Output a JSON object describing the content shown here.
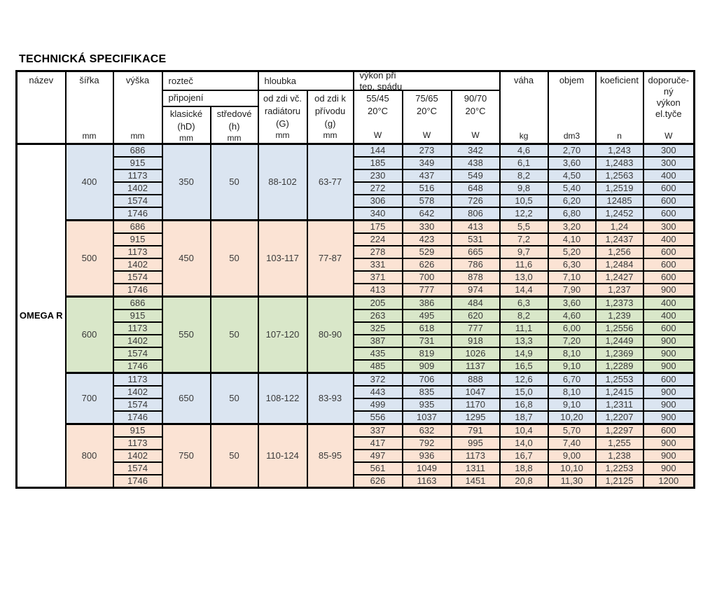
{
  "page_title": "TECHNICKÁ SPECIFIKACE",
  "product_name": "OMEGA R",
  "colors": {
    "group_blue": "#dbe5f1",
    "group_peach": "#fbe3d4",
    "group_green": "#d9e7c9",
    "border": "#000000"
  },
  "header": {
    "nazev": "název",
    "sirka": "šířka",
    "vyska": "výška",
    "roztec": "rozteč",
    "pripojeni": "připojení",
    "klasicke": "klasické",
    "klasicke_sub": "(hD)",
    "stredove": "středové",
    "stredove_sub": "(h)",
    "hloubka": "hloubka",
    "depth_g_line1": "od zdi vč.",
    "depth_g_line2": "radiátoru",
    "depth_g_line3": "(G)",
    "depth_g2_line1": "od zdi k",
    "depth_g2_line2": "přívodu",
    "depth_g2_line3": "(g)",
    "vykon_line1": "výkon při",
    "vykon_line2": "tep. spádu",
    "power55": "55/45",
    "power75": "75/65",
    "power90": "90/70",
    "temp": "20°C",
    "vaha": "váha",
    "objem": "objem",
    "koeficient": "koeficient",
    "dopor_line1": "doporuče-",
    "dopor_line2": "ný",
    "dopor_line3": "výkon",
    "dopor_line4": "el.tyče",
    "unit_mm": "mm",
    "unit_w": "W",
    "unit_kg": "kg",
    "unit_dm3": "dm3",
    "unit_n": "n"
  },
  "groups": [
    {
      "sirka": "400",
      "color": "blue",
      "roztec_klasicke": "350",
      "roztec_stredove": "50",
      "hloubka_g": "88-102",
      "hloubka_g2": "63-77",
      "rows": [
        {
          "vyska": "686",
          "w55": "144",
          "w75": "273",
          "w90": "342",
          "vaha": "4,6",
          "objem": "2,70",
          "koef": "1,243",
          "dopor": "300"
        },
        {
          "vyska": "915",
          "w55": "185",
          "w75": "349",
          "w90": "438",
          "vaha": "6,1",
          "objem": "3,60",
          "koef": "1,2483",
          "dopor": "300"
        },
        {
          "vyska": "1173",
          "w55": "230",
          "w75": "437",
          "w90": "549",
          "vaha": "8,2",
          "objem": "4,50",
          "koef": "1,2563",
          "dopor": "400"
        },
        {
          "vyska": "1402",
          "w55": "272",
          "w75": "516",
          "w90": "648",
          "vaha": "9,8",
          "objem": "5,40",
          "koef": "1,2519",
          "dopor": "600"
        },
        {
          "vyska": "1574",
          "w55": "306",
          "w75": "578",
          "w90": "726",
          "vaha": "10,5",
          "objem": "6,20",
          "koef": "12485",
          "dopor": "600"
        },
        {
          "vyska": "1746",
          "w55": "340",
          "w75": "642",
          "w90": "806",
          "vaha": "12,2",
          "objem": "6,80",
          "koef": "1,2452",
          "dopor": "600"
        }
      ]
    },
    {
      "sirka": "500",
      "color": "peach",
      "roztec_klasicke": "450",
      "roztec_stredove": "50",
      "hloubka_g": "103-117",
      "hloubka_g2": "77-87",
      "rows": [
        {
          "vyska": "686",
          "w55": "175",
          "w75": "330",
          "w90": "413",
          "vaha": "5,5",
          "objem": "3,20",
          "koef": "1,24",
          "dopor": "300"
        },
        {
          "vyska": "915",
          "w55": "224",
          "w75": "423",
          "w90": "531",
          "vaha": "7,2",
          "objem": "4,10",
          "koef": "1,2437",
          "dopor": "400"
        },
        {
          "vyska": "1173",
          "w55": "278",
          "w75": "529",
          "w90": "665",
          "vaha": "9,7",
          "objem": "5,20",
          "koef": "1,256",
          "dopor": "600"
        },
        {
          "vyska": "1402",
          "w55": "331",
          "w75": "626",
          "w90": "786",
          "vaha": "11,6",
          "objem": "6,30",
          "koef": "1,2484",
          "dopor": "600"
        },
        {
          "vyska": "1574",
          "w55": "371",
          "w75": "700",
          "w90": "878",
          "vaha": "13,0",
          "objem": "7,10",
          "koef": "1,2427",
          "dopor": "600"
        },
        {
          "vyska": "1746",
          "w55": "413",
          "w75": "777",
          "w90": "974",
          "vaha": "14,4",
          "objem": "7,90",
          "koef": "1,237",
          "dopor": "900"
        }
      ]
    },
    {
      "sirka": "600",
      "color": "green",
      "roztec_klasicke": "550",
      "roztec_stredove": "50",
      "hloubka_g": "107-120",
      "hloubka_g2": "80-90",
      "rows": [
        {
          "vyska": "686",
          "w55": "205",
          "w75": "386",
          "w90": "484",
          "vaha": "6,3",
          "objem": "3,60",
          "koef": "1,2373",
          "dopor": "400"
        },
        {
          "vyska": "915",
          "w55": "263",
          "w75": "495",
          "w90": "620",
          "vaha": "8,2",
          "objem": "4,60",
          "koef": "1,239",
          "dopor": "400"
        },
        {
          "vyska": "1173",
          "w55": "325",
          "w75": "618",
          "w90": "777",
          "vaha": "11,1",
          "objem": "6,00",
          "koef": "1,2556",
          "dopor": "600"
        },
        {
          "vyska": "1402",
          "w55": "387",
          "w75": "731",
          "w90": "918",
          "vaha": "13,3",
          "objem": "7,20",
          "koef": "1,2449",
          "dopor": "900"
        },
        {
          "vyska": "1574",
          "w55": "435",
          "w75": "819",
          "w90": "1026",
          "vaha": "14,9",
          "objem": "8,10",
          "koef": "1,2369",
          "dopor": "900"
        },
        {
          "vyska": "1746",
          "w55": "485",
          "w75": "909",
          "w90": "1137",
          "vaha": "16,5",
          "objem": "9,10",
          "koef": "1,2289",
          "dopor": "900"
        }
      ]
    },
    {
      "sirka": "700",
      "color": "blue",
      "roztec_klasicke": "650",
      "roztec_stredove": "50",
      "hloubka_g": "108-122",
      "hloubka_g2": "83-93",
      "rows": [
        {
          "vyska": "1173",
          "w55": "372",
          "w75": "706",
          "w90": "888",
          "vaha": "12,6",
          "objem": "6,70",
          "koef": "1,2553",
          "dopor": "600"
        },
        {
          "vyska": "1402",
          "w55": "443",
          "w75": "835",
          "w90": "1047",
          "vaha": "15,0",
          "objem": "8,10",
          "koef": "1,2415",
          "dopor": "900"
        },
        {
          "vyska": "1574",
          "w55": "499",
          "w75": "935",
          "w90": "1170",
          "vaha": "16,8",
          "objem": "9,10",
          "koef": "1,2311",
          "dopor": "900"
        },
        {
          "vyska": "1746",
          "w55": "556",
          "w75": "1037",
          "w90": "1295",
          "vaha": "18,7",
          "objem": "10,20",
          "koef": "1,2207",
          "dopor": "900"
        }
      ]
    },
    {
      "sirka": "800",
      "color": "peach",
      "roztec_klasicke": "750",
      "roztec_stredove": "50",
      "hloubka_g": "110-124",
      "hloubka_g2": "85-95",
      "rows": [
        {
          "vyska": "915",
          "w55": "337",
          "w75": "632",
          "w90": "791",
          "vaha": "10,4",
          "objem": "5,70",
          "koef": "1,2297",
          "dopor": "600"
        },
        {
          "vyska": "1173",
          "w55": "417",
          "w75": "792",
          "w90": "995",
          "vaha": "14,0",
          "objem": "7,40",
          "koef": "1,255",
          "dopor": "900"
        },
        {
          "vyska": "1402",
          "w55": "497",
          "w75": "936",
          "w90": "1173",
          "vaha": "16,7",
          "objem": "9,00",
          "koef": "1,238",
          "dopor": "900"
        },
        {
          "vyska": "1574",
          "w55": "561",
          "w75": "1049",
          "w90": "1311",
          "vaha": "18,8",
          "objem": "10,10",
          "koef": "1,2253",
          "dopor": "900"
        },
        {
          "vyska": "1746",
          "w55": "626",
          "w75": "1163",
          "w90": "1451",
          "vaha": "20,8",
          "objem": "11,30",
          "koef": "1,2125",
          "dopor": "1200"
        }
      ]
    }
  ]
}
